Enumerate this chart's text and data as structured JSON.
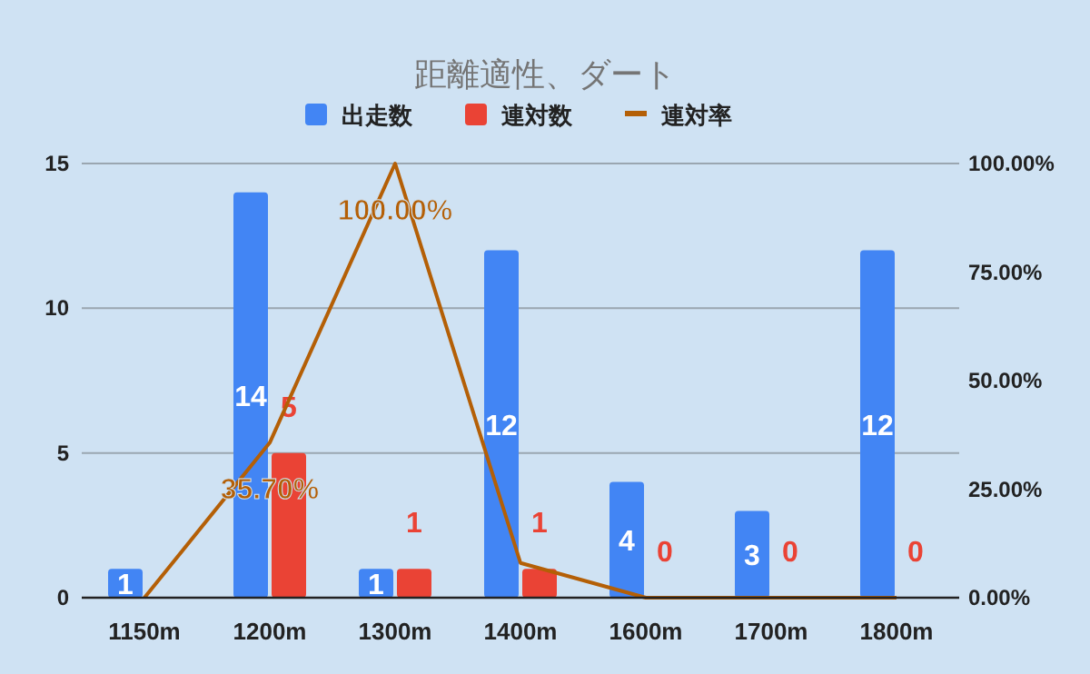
{
  "chart_data": {
    "type": "bar",
    "title": "距離適性、ダート",
    "categories": [
      "1150m",
      "1200m",
      "1300m",
      "1400m",
      "1600m",
      "1700m",
      "1800m"
    ],
    "series": [
      {
        "name": "出走数",
        "color": "#4285f4",
        "values": [
          1,
          14,
          1,
          12,
          4,
          3,
          12
        ],
        "value_labels": [
          "1",
          "14",
          "1",
          "12",
          "4",
          "3",
          "12"
        ]
      },
      {
        "name": "連対数",
        "color": "#ea4335",
        "values": [
          0,
          5,
          1,
          1,
          0,
          0,
          0
        ],
        "value_labels": [
          null,
          "5",
          "1",
          "1",
          "0",
          "0",
          "0"
        ]
      },
      {
        "name": "連対率",
        "type": "line",
        "axis": "y2",
        "color": "#b45f06",
        "values": [
          0,
          35.7,
          100,
          8,
          0,
          0,
          0
        ],
        "value_labels": [
          null,
          "35.70%",
          "100.00%",
          null,
          null,
          null,
          null
        ]
      }
    ],
    "ylim": [
      0,
      15
    ],
    "yticks": [
      0,
      5,
      10,
      15
    ],
    "y2lim": [
      0,
      100
    ],
    "y2ticks": [
      {
        "value": 0,
        "label": "0.00%"
      },
      {
        "value": 25,
        "label": "25.00%"
      },
      {
        "value": 50,
        "label": "50.00%"
      },
      {
        "value": 75,
        "label": "75.00%"
      },
      {
        "value": 100,
        "label": "100.00%"
      }
    ],
    "grid": "y",
    "legend": "top",
    "marker": "none",
    "line_style": "solid"
  }
}
